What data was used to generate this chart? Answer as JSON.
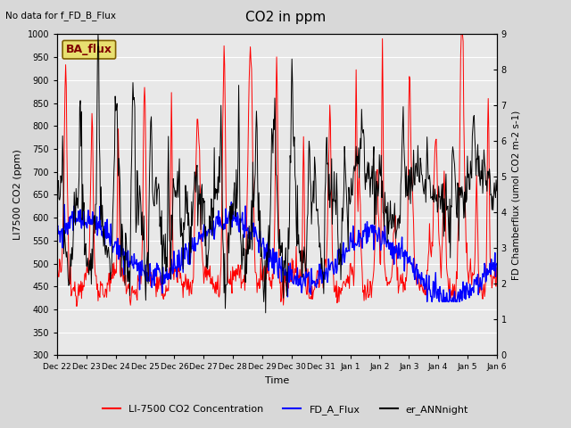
{
  "title": "CO2 in ppm",
  "top_left_text": "No data for f_FD_B_Flux",
  "box_label": "BA_flux",
  "xlabel": "Time",
  "ylabel_left": "LI7500 CO2 (ppm)",
  "ylabel_right": "FD Chamberflux (umol CO2 m-2 s-1)",
  "ylim_left": [
    300,
    1000
  ],
  "ylim_right": [
    0.0,
    9.0
  ],
  "yticks_left": [
    300,
    350,
    400,
    450,
    500,
    550,
    600,
    650,
    700,
    750,
    800,
    850,
    900,
    950,
    1000
  ],
  "yticks_right": [
    0.0,
    1.0,
    2.0,
    3.0,
    4.0,
    5.0,
    6.0,
    7.0,
    8.0,
    9.0
  ],
  "xtick_labels": [
    "Dec 22",
    "Dec 23",
    "Dec 24",
    "Dec 25",
    "Dec 26",
    "Dec 27",
    "Dec 28",
    "Dec 29",
    "Dec 30",
    "Dec 31",
    "Jan 1",
    "Jan 2",
    "Jan 3",
    "Jan 4",
    "Jan 5",
    "Jan 6"
  ],
  "bg_color": "#d8d8d8",
  "plot_bg_color": "#e8e8e8",
  "legend_labels": [
    "LI-7500 CO2 Concentration",
    "FD_A_Flux",
    "er_ANNnight"
  ],
  "legend_colors": [
    "red",
    "blue",
    "black"
  ],
  "red_line_color": "red",
  "blue_line_color": "blue",
  "black_line_color": "black",
  "box_facecolor": "#e8e070",
  "box_edgecolor": "#806000",
  "box_textcolor": "#800000",
  "n_days": 15,
  "n_per_day": 48
}
